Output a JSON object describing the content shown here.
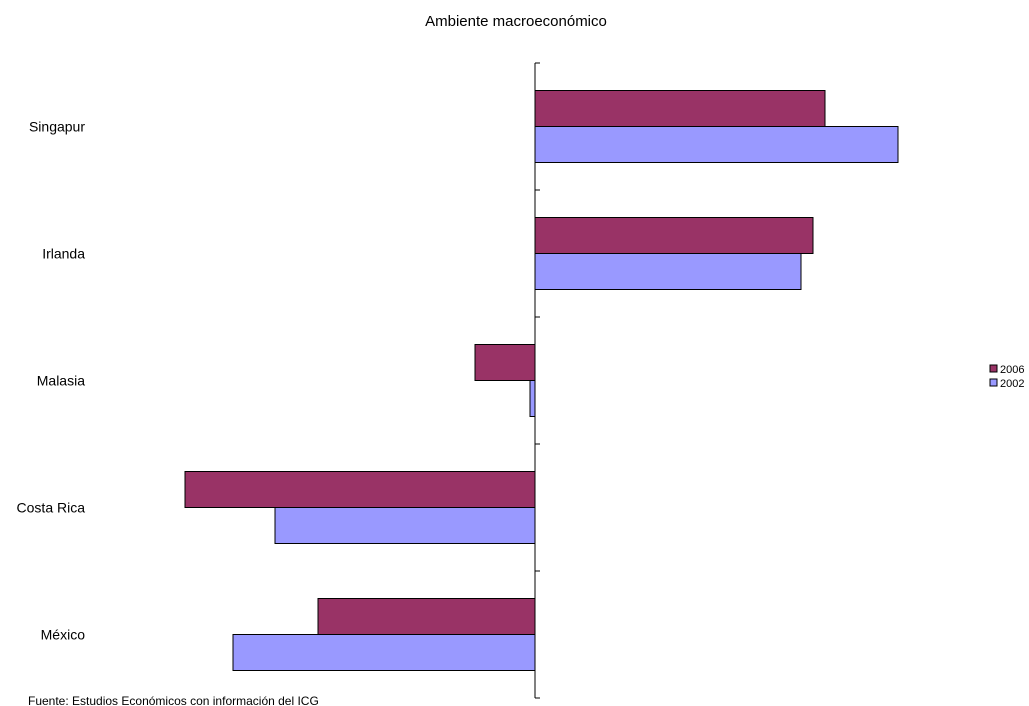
{
  "chart_data": {
    "type": "bar",
    "orientation": "horizontal",
    "title": "Ambiente macroeconómico",
    "categories": [
      "Singapur",
      "Irlanda",
      "Malasia",
      "Costa Rica",
      "México"
    ],
    "series": [
      {
        "name": "2006",
        "color": "#993366",
        "values": [
          2.9,
          2.78,
          -0.6,
          -3.5,
          -2.17
        ]
      },
      {
        "name": "2002",
        "color": "#9999ff",
        "values": [
          3.63,
          2.66,
          -0.05,
          -2.6,
          -3.02
        ]
      }
    ],
    "xlim": [
      -3.5,
      4.9
    ],
    "grid": false,
    "legend_position": "right"
  },
  "source_note": "Fuente: Estudios Económicos con información del ICG"
}
